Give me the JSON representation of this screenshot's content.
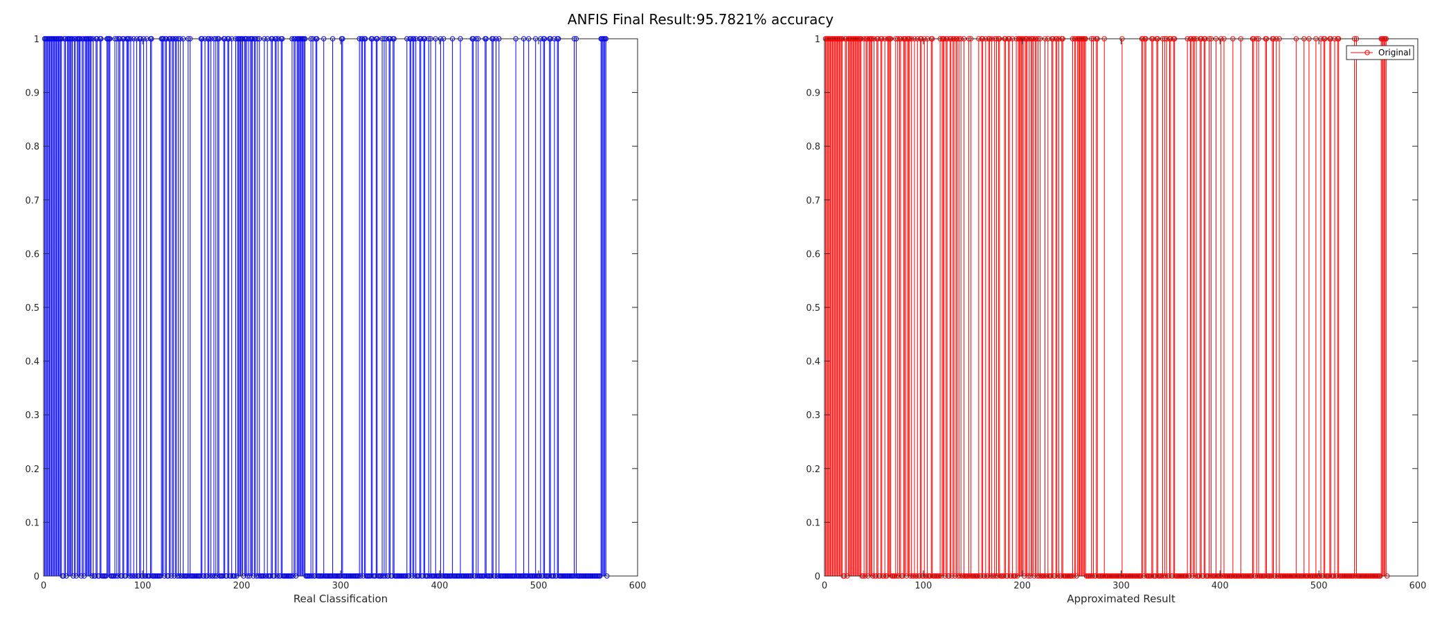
{
  "figure": {
    "title": "ANFIS Final Result:95.7821% accuracy"
  },
  "chart_data": [
    {
      "type": "stem",
      "title": "",
      "xlabel": "Real Classification",
      "ylabel": "",
      "xlim": [
        0,
        600
      ],
      "ylim": [
        0,
        1
      ],
      "xticks": [
        0,
        100,
        200,
        300,
        400,
        500,
        600
      ],
      "yticks": [
        0,
        0.1,
        0.2,
        0.3,
        0.4,
        0.5,
        0.6,
        0.7,
        0.8,
        0.9,
        1
      ],
      "grid": false,
      "legend": null,
      "color": "#0000ff",
      "marker": "circle",
      "n": 569,
      "ones_indices": [
        1,
        2,
        3,
        4,
        5,
        6,
        7,
        8,
        9,
        10,
        11,
        12,
        13,
        14,
        15,
        16,
        17,
        18,
        21,
        22,
        24,
        25,
        26,
        27,
        28,
        29,
        31,
        32,
        34,
        35,
        36,
        37,
        39,
        40,
        42,
        43,
        44,
        45,
        46,
        47,
        48,
        50,
        53,
        54,
        57,
        58,
        64,
        65,
        66,
        67,
        72,
        74,
        76,
        77,
        80,
        81,
        84,
        85,
        86,
        88,
        91,
        94,
        97,
        98,
        101,
        104,
        108,
        109,
        119,
        120,
        121,
        123,
        124,
        127,
        128,
        130,
        131,
        133,
        134,
        136,
        138,
        141,
        146,
        148,
        159,
        160,
        163,
        166,
        167,
        169,
        172,
        174,
        176,
        177,
        182,
        183,
        186,
        187,
        190,
        194,
        196,
        197,
        198,
        199,
        200,
        201,
        203,
        204,
        205,
        207,
        209,
        210,
        211,
        213,
        214,
        216,
        218,
        223,
        226,
        230,
        231,
        234,
        235,
        237,
        240,
        241,
        251,
        253,
        254,
        256,
        257,
        258,
        259,
        260,
        261,
        262,
        263,
        264,
        270,
        272,
        275,
        276,
        283,
        292,
        301,
        302,
        319,
        321,
        322,
        324,
        325,
        331,
        332,
        336,
        337,
        342,
        344,
        346,
        349,
        350,
        353,
        354,
        367,
        370,
        371,
        373,
        374,
        376,
        380,
        381,
        384,
        385,
        389,
        391,
        396,
        401,
        404,
        413,
        421,
        433,
        434,
        437,
        439,
        446,
        447,
        453,
        454,
        457,
        460,
        477,
        485,
        490,
        497,
        502,
        505,
        506,
        511,
        512,
        516,
        519,
        520,
        536,
        538,
        563,
        564,
        565,
        566,
        567,
        568
      ]
    },
    {
      "type": "stem",
      "title": "",
      "xlabel": "Approximated Result",
      "ylabel": "",
      "xlim": [
        0,
        600
      ],
      "ylim": [
        0,
        1
      ],
      "xticks": [
        0,
        100,
        200,
        300,
        400,
        500,
        600
      ],
      "yticks": [
        0,
        0.1,
        0.2,
        0.3,
        0.4,
        0.5,
        0.6,
        0.7,
        0.8,
        0.9,
        1
      ],
      "grid": false,
      "legend": {
        "entries": [
          "Original"
        ],
        "location": "top-right"
      },
      "color": "#ff0000",
      "marker": "circle",
      "n": 569,
      "ones_indices": [
        1,
        2,
        3,
        4,
        5,
        6,
        7,
        8,
        9,
        10,
        11,
        12,
        13,
        14,
        15,
        16,
        17,
        18,
        21,
        22,
        24,
        25,
        26,
        27,
        28,
        29,
        30,
        31,
        32,
        33,
        34,
        35,
        36,
        37,
        40,
        42,
        43,
        45,
        46,
        47,
        48,
        50,
        53,
        54,
        57,
        58,
        61,
        64,
        65,
        66,
        67,
        72,
        74,
        76,
        77,
        80,
        81,
        82,
        84,
        85,
        86,
        88,
        91,
        94,
        97,
        98,
        101,
        104,
        108,
        109,
        117,
        119,
        120,
        121,
        123,
        124,
        127,
        128,
        130,
        131,
        133,
        134,
        136,
        138,
        141,
        146,
        148,
        156,
        159,
        160,
        163,
        166,
        167,
        169,
        172,
        174,
        176,
        177,
        182,
        183,
        186,
        187,
        190,
        194,
        196,
        197,
        198,
        199,
        200,
        201,
        203,
        204,
        205,
        207,
        209,
        210,
        211,
        213,
        214,
        216,
        218,
        223,
        226,
        230,
        231,
        234,
        235,
        237,
        240,
        241,
        251,
        253,
        254,
        256,
        257,
        258,
        259,
        260,
        261,
        262,
        263,
        264,
        270,
        272,
        275,
        276,
        283,
        301,
        321,
        322,
        324,
        325,
        331,
        332,
        336,
        337,
        342,
        344,
        346,
        349,
        350,
        353,
        354,
        367,
        370,
        371,
        373,
        374,
        376,
        380,
        381,
        384,
        385,
        389,
        391,
        396,
        401,
        404,
        413,
        421,
        433,
        434,
        437,
        439,
        446,
        447,
        453,
        454,
        457,
        460,
        477,
        485,
        490,
        497,
        502,
        505,
        506,
        511,
        512,
        516,
        519,
        520,
        536,
        538,
        563,
        564,
        565,
        566,
        567,
        568
      ]
    }
  ]
}
